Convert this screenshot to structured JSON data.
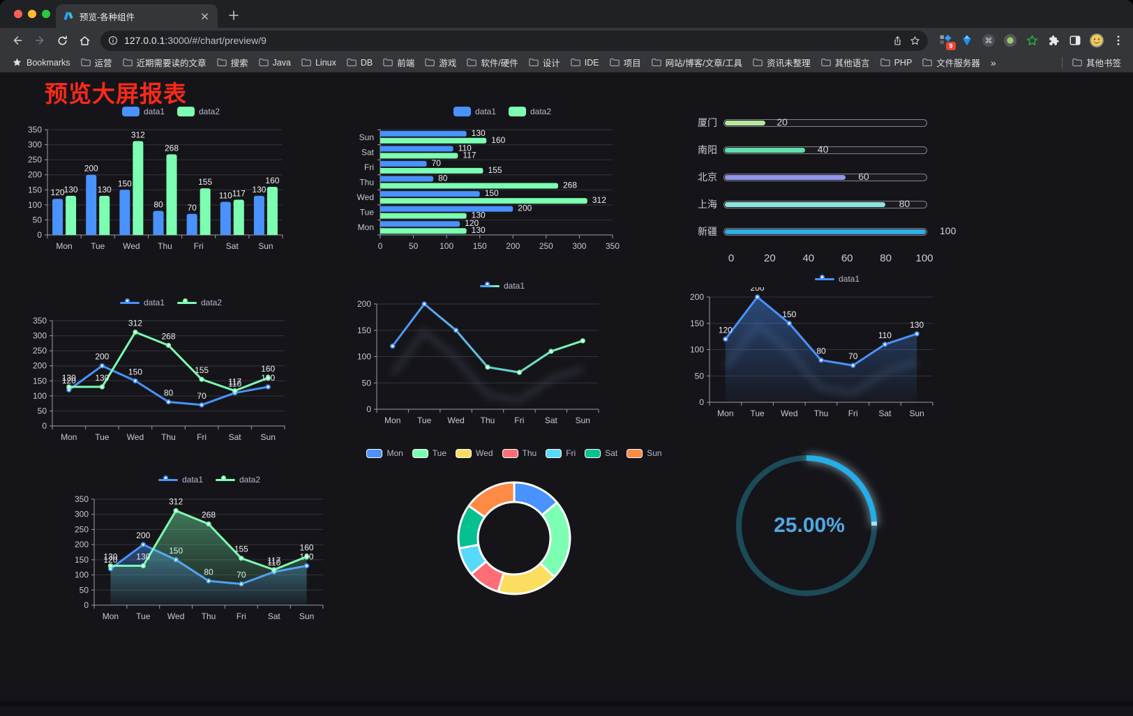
{
  "browser": {
    "tab_title": "预览-各种组件",
    "url_host": "127.0.0.1",
    "url_path": ":3000/#/chart/preview/9",
    "extensions_badge": "9",
    "bookmarks_label": "Bookmarks",
    "bookmarks": [
      "运营",
      "近期需要读的文章",
      "搜索",
      "Java",
      "Linux",
      "DB",
      "前端",
      "游戏",
      "软件/硬件",
      "设计",
      "IDE",
      "项目",
      "网站/博客/文章/工具",
      "资讯未整理",
      "其他语言",
      "PHP",
      "文件服务器"
    ],
    "bookmarks_overflow": "»",
    "other_bookmarks_label": "其他书签",
    "extension_icons": [
      "capture-grid-icon",
      "gem-icon",
      "command-icon",
      "record-icon",
      "green-star-icon",
      "puzzle-icon",
      "sidebar-toggle-icon",
      "emoji-avatar-icon"
    ]
  },
  "page": {
    "title": "预览大屏报表",
    "title_color": "#fb2a18"
  },
  "colors": {
    "accent_blue": "#4992ff",
    "accent_green": "#7cffb2",
    "axis_text": "#c8c8d4",
    "grid_line": "#33333d"
  },
  "chart_data": [
    {
      "id": "grouped-bar",
      "type": "bar",
      "legend": "rect",
      "value_labels": true,
      "categories": [
        "Mon",
        "Tue",
        "Wed",
        "Thu",
        "Fri",
        "Sat",
        "Sun"
      ],
      "series": [
        {
          "name": "data1",
          "color": "#4992ff",
          "values": [
            120,
            200,
            150,
            80,
            70,
            110,
            130
          ]
        },
        {
          "name": "data2",
          "color": "#7cffb2",
          "values": [
            130,
            130,
            312,
            268,
            155,
            117,
            160
          ]
        }
      ],
      "ylim": [
        0,
        350
      ],
      "ytick": 50
    },
    {
      "id": "horizontal-bar",
      "type": "bar-h",
      "legend": "rect",
      "value_labels": true,
      "categories": [
        "Mon",
        "Tue",
        "Wed",
        "Thu",
        "Fri",
        "Sat",
        "Sun"
      ],
      "series": [
        {
          "name": "data1",
          "color": "#4992ff",
          "values": [
            120,
            200,
            150,
            80,
            70,
            110,
            130
          ]
        },
        {
          "name": "data2",
          "color": "#7cffb2",
          "values": [
            130,
            130,
            312,
            268,
            155,
            117,
            160
          ]
        }
      ],
      "xlim": [
        0,
        350
      ],
      "xtick": 50
    },
    {
      "id": "progress-bars",
      "type": "progress",
      "max": 100,
      "axis_ticks": [
        0,
        20,
        40,
        60,
        80,
        100
      ],
      "items": [
        {
          "label": "厦门",
          "value": 20,
          "color": "#b6e79f"
        },
        {
          "label": "南阳",
          "value": 40,
          "color": "#5fe0ad"
        },
        {
          "label": "北京",
          "value": 60,
          "color": "#9196ed"
        },
        {
          "label": "上海",
          "value": 80,
          "color": "#8be5de"
        },
        {
          "label": "新疆",
          "value": 100,
          "color": "#32aee6"
        }
      ]
    },
    {
      "id": "line-basic",
      "type": "line",
      "legend": "linedot",
      "value_labels": true,
      "categories": [
        "Mon",
        "Tue",
        "Wed",
        "Thu",
        "Fri",
        "Sat",
        "Sun"
      ],
      "series": [
        {
          "name": "data1",
          "color": "#4992ff",
          "values": [
            120,
            200,
            150,
            80,
            70,
            110,
            130
          ]
        },
        {
          "name": "data2",
          "color": "#7cffb2",
          "values": [
            130,
            130,
            312,
            268,
            155,
            117,
            160
          ]
        }
      ],
      "ylim": [
        0,
        350
      ],
      "ytick": 50
    },
    {
      "id": "line-gradient",
      "type": "line",
      "legend": "linedot",
      "value_labels": false,
      "categories": [
        "Mon",
        "Tue",
        "Wed",
        "Thu",
        "Fri",
        "Sat",
        "Sun"
      ],
      "series": [
        {
          "name": "data1",
          "color": "#4992ff",
          "color2": "#7cffb2",
          "shadow": true,
          "values": [
            120,
            200,
            150,
            80,
            70,
            110,
            130
          ]
        }
      ],
      "ylim": [
        0,
        200
      ],
      "ytick": 50
    },
    {
      "id": "area-single",
      "type": "line",
      "legend": "linedot",
      "value_labels": true,
      "categories": [
        "Mon",
        "Tue",
        "Wed",
        "Thu",
        "Fri",
        "Sat",
        "Sun"
      ],
      "series": [
        {
          "name": "data1",
          "color": "#4992ff",
          "area": true,
          "shadow": true,
          "values": [
            120,
            200,
            150,
            80,
            70,
            110,
            130
          ]
        }
      ],
      "ylim": [
        0,
        200
      ],
      "ytick": 50
    },
    {
      "id": "area-double",
      "type": "line",
      "legend": "linedot",
      "value_labels": true,
      "categories": [
        "Mon",
        "Tue",
        "Wed",
        "Thu",
        "Fri",
        "Sat",
        "Sun"
      ],
      "series": [
        {
          "name": "data1",
          "color": "#4992ff",
          "area": true,
          "values": [
            120,
            200,
            150,
            80,
            70,
            110,
            130
          ]
        },
        {
          "name": "data2",
          "color": "#7cffb2",
          "area": true,
          "values": [
            130,
            130,
            312,
            268,
            155,
            117,
            160
          ]
        }
      ],
      "ylim": [
        0,
        350
      ],
      "ytick": 50
    },
    {
      "id": "donut",
      "type": "pie",
      "legend": "rect-bordered",
      "items": [
        {
          "label": "Mon",
          "value": 120,
          "color": "#4992ff"
        },
        {
          "label": "Tue",
          "value": 200,
          "color": "#7cffb2"
        },
        {
          "label": "Wed",
          "value": 150,
          "color": "#fddd60"
        },
        {
          "label": "Thu",
          "value": 80,
          "color": "#ff6e76"
        },
        {
          "label": "Fri",
          "value": 70,
          "color": "#58d9f9"
        },
        {
          "label": "Sat",
          "value": 110,
          "color": "#05c091"
        },
        {
          "label": "Sun",
          "value": 130,
          "color": "#ff8a45"
        }
      ]
    },
    {
      "id": "ring-gauge",
      "type": "gauge",
      "percent": 25,
      "label": "25.00%",
      "track_color": "#1c4a57",
      "progress_color": "#24ade8",
      "text_color": "#4fa9e3"
    }
  ]
}
